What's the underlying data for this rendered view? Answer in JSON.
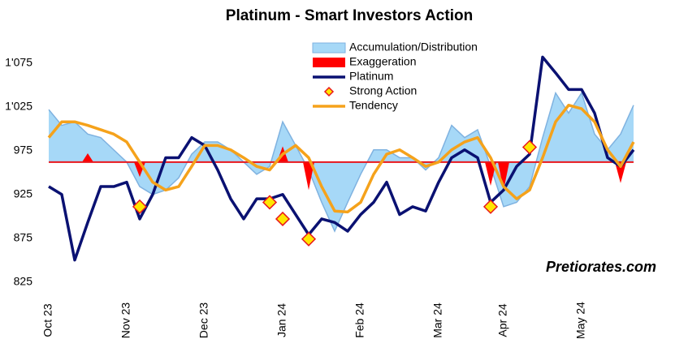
{
  "chart_data": {
    "type": "line",
    "title": "Platinum - Smart Investors Action",
    "watermark": "Pretiorates.com",
    "categories": [
      "Oct 23",
      null,
      null,
      null,
      null,
      null,
      "Nov 23",
      null,
      null,
      null,
      null,
      null,
      "Dec 23",
      null,
      null,
      null,
      null,
      null,
      "Jan 24",
      null,
      null,
      null,
      null,
      null,
      "Feb 24",
      null,
      null,
      null,
      null,
      null,
      "Mar 24",
      null,
      null,
      null,
      null,
      "Apr 24",
      null,
      null,
      null,
      null,
      null,
      "May 24",
      null,
      null,
      null,
      null
    ],
    "reference_line": {
      "value": 962,
      "color": "#e8161c"
    },
    "series": [
      {
        "name": "Accumulation/Distribution",
        "kind": "area",
        "color": "#a6d8f7",
        "line_color": "#7fb2e0",
        "values": [
          1022,
          1004,
          1008,
          994,
          990,
          976,
          962,
          934,
          925,
          930,
          944,
          971,
          985,
          985,
          976,
          962,
          948,
          957,
          1008,
          981,
          953,
          916,
          883,
          916,
          948,
          976,
          976,
          967,
          967,
          953,
          967,
          1004,
          990,
          999,
          957,
          911,
          916,
          934,
          990,
          1041,
          1018,
          1041,
          994,
          976,
          994,
          1027
        ]
      },
      {
        "name": "Exaggeration",
        "kind": "spike",
        "color": "#ff0000",
        "values": [
          null,
          null,
          null,
          972,
          null,
          null,
          null,
          945,
          null,
          null,
          null,
          null,
          null,
          null,
          null,
          null,
          null,
          null,
          980,
          null,
          930,
          null,
          null,
          null,
          null,
          null,
          null,
          null,
          null,
          null,
          null,
          null,
          null,
          null,
          935,
          930,
          null,
          null,
          null,
          null,
          null,
          null,
          null,
          null,
          938,
          null
        ]
      },
      {
        "name": "Platinum",
        "kind": "line",
        "color": "#0a1172",
        "values": [
          934,
          925,
          850,
          893,
          934,
          934,
          939,
          897,
          925,
          967,
          967,
          990,
          981,
          953,
          920,
          897,
          920,
          920,
          925,
          902,
          879,
          897,
          893,
          883,
          902,
          916,
          939,
          902,
          911,
          906,
          939,
          967,
          976,
          967,
          916,
          930,
          957,
          971,
          1082,
          1064,
          1045,
          1045,
          1018,
          967,
          957,
          976
        ]
      },
      {
        "name": "Strong Action",
        "kind": "marker",
        "color": "#ffe600",
        "line_color": "#e8161c",
        "values": [
          null,
          null,
          null,
          null,
          null,
          null,
          null,
          911,
          null,
          null,
          null,
          null,
          null,
          null,
          null,
          null,
          null,
          916,
          897,
          null,
          874,
          null,
          null,
          null,
          null,
          null,
          null,
          null,
          null,
          null,
          null,
          null,
          null,
          null,
          911,
          null,
          null,
          979,
          null,
          null,
          null,
          null,
          null,
          null,
          null,
          null
        ]
      },
      {
        "name": "Tendency",
        "kind": "line",
        "color": "#f5a21b",
        "values": [
          990,
          1008,
          1008,
          1004,
          999,
          994,
          985,
          962,
          939,
          930,
          934,
          957,
          981,
          981,
          976,
          967,
          957,
          953,
          971,
          981,
          967,
          934,
          906,
          905,
          916,
          948,
          971,
          976,
          967,
          957,
          962,
          976,
          985,
          990,
          967,
          934,
          920,
          930,
          967,
          1008,
          1027,
          1023,
          1008,
          976,
          957,
          985
        ]
      }
    ],
    "ylim": [
      820,
      1100
    ],
    "yticks": [
      825,
      875,
      925,
      975,
      {
        "value": 1025,
        "label": "1'025"
      },
      {
        "value": 1075,
        "label": "1'075"
      }
    ],
    "legend": "top"
  }
}
